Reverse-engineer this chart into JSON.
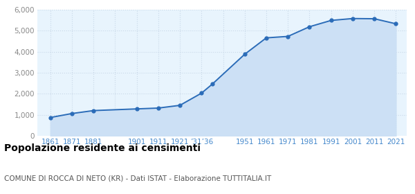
{
  "years": [
    1861,
    1871,
    1881,
    1901,
    1911,
    1921,
    1931,
    1936,
    1951,
    1961,
    1971,
    1981,
    1991,
    2001,
    2011,
    2021
  ],
  "population": [
    870,
    1060,
    1200,
    1280,
    1320,
    1450,
    2030,
    2460,
    3880,
    4660,
    4730,
    5190,
    5490,
    5580,
    5570,
    5330
  ],
  "x_tick_labels_custom": [
    "1861",
    "1871",
    "1881",
    "",
    "1901",
    "1911",
    "1921",
    "’31’36",
    "",
    "1951",
    "1961",
    "1971",
    "1981",
    "1991",
    "2001",
    "2011",
    "2021"
  ],
  "x_tick_positions": [
    1861,
    1871,
    1881,
    1891,
    1901,
    1911,
    1921,
    1931,
    1941,
    1951,
    1961,
    1971,
    1981,
    1991,
    2001,
    2011,
    2021
  ],
  "ylim": [
    0,
    6000
  ],
  "yticks": [
    0,
    1000,
    2000,
    3000,
    4000,
    5000,
    6000
  ],
  "ytick_labels": [
    "0",
    "1,000",
    "2,000",
    "3,000",
    "4,000",
    "5,000",
    "6,000"
  ],
  "line_color": "#2b6cb8",
  "fill_color": "#cce0f5",
  "marker_color": "#2b6cb8",
  "grid_color": "#c8d8e8",
  "bg_color": "#e8f4fd",
  "title": "Popolazione residente ai censimenti",
  "subtitle": "COMUNE DI ROCCA DI NETO (KR) - Dati ISTAT - Elaborazione TUTTITALIA.IT",
  "title_fontsize": 10,
  "subtitle_fontsize": 7.5,
  "tick_color": "#4488cc",
  "ytick_color": "#888888"
}
